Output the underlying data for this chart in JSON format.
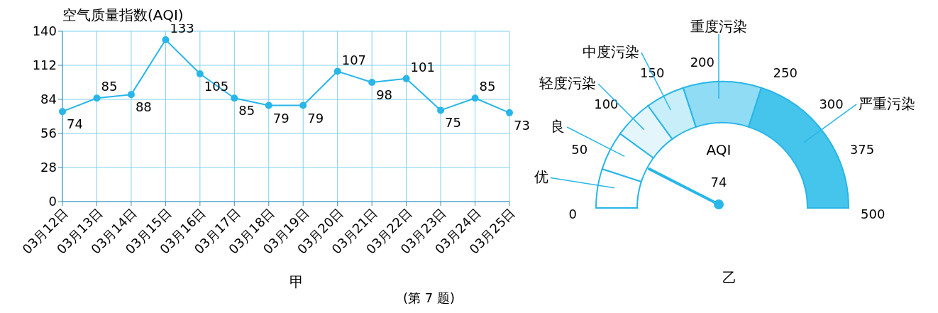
{
  "chart_data": [
    {
      "type": "line",
      "ylabel": "空气质量指数(AQI)",
      "xlabel": "甲",
      "categories": [
        "03月12日",
        "03月13日",
        "03月14日",
        "03月15日",
        "03月16日",
        "03月17日",
        "03月18日",
        "03月19日",
        "03月20日",
        "03月21日",
        "03月22日",
        "03月23日",
        "03月24日",
        "03月25日"
      ],
      "series": [
        {
          "color": "#29b6e8",
          "values": [
            74,
            85,
            88,
            133,
            105,
            85,
            79,
            79,
            107,
            98,
            101,
            75,
            85,
            73
          ]
        }
      ],
      "ylim": [
        0,
        140
      ],
      "yticks": [
        0,
        28,
        56,
        84,
        112,
        140
      ],
      "grid": true,
      "marker": "circle",
      "data_labels": true
    },
    {
      "type": "donut",
      "xlabel": "乙",
      "needle": "良",
      "categories": [
        "优",
        "良",
        "轻度污染",
        "中度污染",
        "重度污染",
        "严重污染"
      ],
      "values": [
        10,
        10,
        10,
        10,
        20,
        40
      ],
      "colors": [
        "#ffffff",
        "#ffffff",
        "#e4f6fc",
        "#c8eefa",
        "#8fdcf4",
        "#45c4ec"
      ],
      "annotations": [
        "AQI",
        "74",
        "(第 7 题)",
        "0",
        "50",
        "100",
        "150",
        "200",
        "250",
        "300",
        "375",
        "500"
      ]
    }
  ]
}
